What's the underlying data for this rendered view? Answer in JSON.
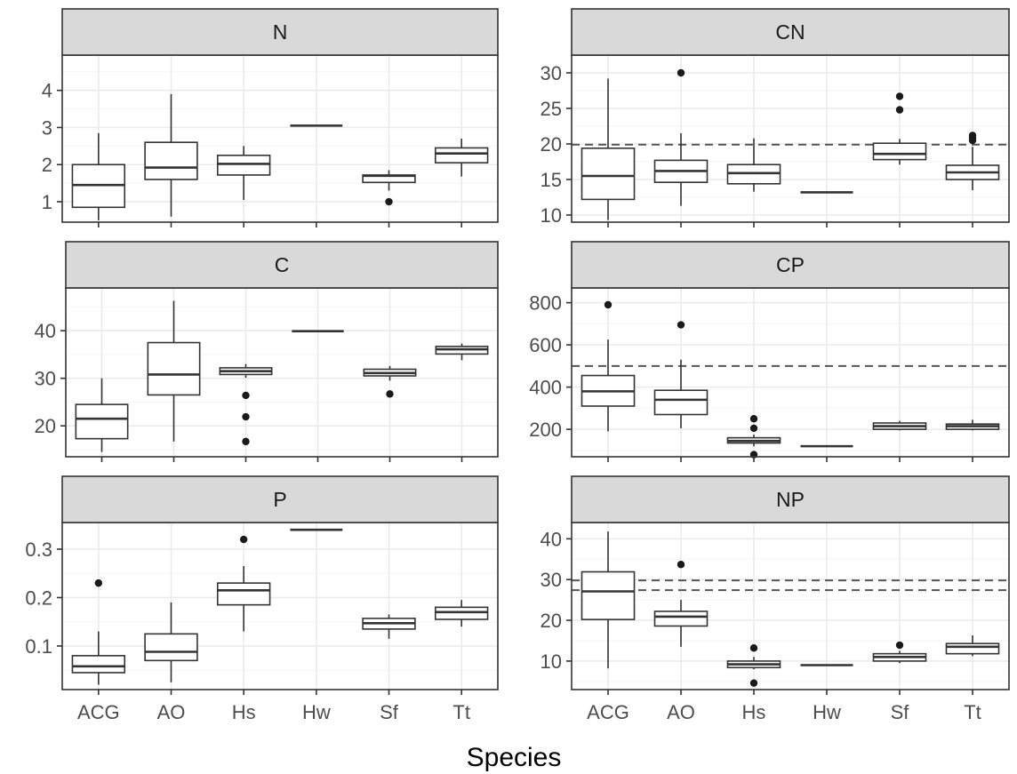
{
  "figure": {
    "xlabel": "Species",
    "categories": [
      "ACG",
      "AO",
      "Hs",
      "Hw",
      "Sf",
      "Tt"
    ],
    "colors": {
      "strip_fill": "#d9d9d9",
      "panel_border": "#333333",
      "grid_major": "#ebebeb",
      "grid_minor": "#f5f5f5",
      "box_stroke": "#333333",
      "reference_line": "#555555",
      "outlier": "#1a1a1a"
    }
  },
  "chart_data": [
    {
      "type": "boxplot",
      "title": "N",
      "ylim": [
        0.45,
        4.95
      ],
      "yticks": [
        1,
        2,
        3,
        4
      ],
      "yticklabels": [
        "1",
        "2",
        "3",
        "4"
      ],
      "reference_lines": [],
      "boxes": [
        {
          "category": "ACG",
          "whisker_low": 0.5,
          "q1": 0.85,
          "median": 1.45,
          "q3": 2.0,
          "whisker_high": 2.85,
          "outliers": []
        },
        {
          "category": "AO",
          "whisker_low": 0.6,
          "q1": 1.6,
          "median": 1.92,
          "q3": 2.6,
          "whisker_high": 3.9,
          "outliers": []
        },
        {
          "category": "Hs",
          "whisker_low": 1.05,
          "q1": 1.72,
          "median": 2.02,
          "q3": 2.25,
          "whisker_high": 2.5,
          "outliers": []
        },
        {
          "category": "Hw",
          "whisker_low": 3.05,
          "q1": 3.05,
          "median": 3.05,
          "q3": 3.05,
          "whisker_high": 3.05,
          "outliers": []
        },
        {
          "category": "Sf",
          "whisker_low": 1.3,
          "q1": 1.52,
          "median": 1.7,
          "q3": 1.72,
          "whisker_high": 1.85,
          "outliers": [
            1.0
          ]
        },
        {
          "category": "Tt",
          "whisker_low": 1.68,
          "q1": 2.05,
          "median": 2.3,
          "q3": 2.45,
          "whisker_high": 2.7,
          "outliers": []
        }
      ]
    },
    {
      "type": "boxplot",
      "title": "CN",
      "ylim": [
        9.0,
        32.5
      ],
      "yticks": [
        10,
        15,
        20,
        25,
        30
      ],
      "yticklabels": [
        "10",
        "15",
        "20",
        "25",
        "30"
      ],
      "reference_lines": [
        19.9
      ],
      "boxes": [
        {
          "category": "ACG",
          "whisker_low": 9.3,
          "q1": 12.2,
          "median": 15.5,
          "q3": 19.4,
          "whisker_high": 29.2,
          "outliers": []
        },
        {
          "category": "AO",
          "whisker_low": 11.3,
          "q1": 14.6,
          "median": 16.2,
          "q3": 17.7,
          "whisker_high": 21.5,
          "outliers": [
            30.0
          ]
        },
        {
          "category": "Hs",
          "whisker_low": 13.3,
          "q1": 14.4,
          "median": 15.9,
          "q3": 17.1,
          "whisker_high": 20.8,
          "outliers": []
        },
        {
          "category": "Hw",
          "whisker_low": 13.2,
          "q1": 13.2,
          "median": 13.2,
          "q3": 13.2,
          "whisker_high": 13.2,
          "outliers": []
        },
        {
          "category": "Sf",
          "whisker_low": 17.1,
          "q1": 17.8,
          "median": 18.6,
          "q3": 20.1,
          "whisker_high": 20.7,
          "outliers": [
            24.8,
            26.7
          ]
        },
        {
          "category": "Tt",
          "whisker_low": 13.5,
          "q1": 15.0,
          "median": 16.0,
          "q3": 17.0,
          "whisker_high": 19.6,
          "outliers": [
            20.5,
            20.9,
            21.2
          ]
        }
      ]
    },
    {
      "type": "boxplot",
      "title": "C",
      "ylim": [
        13.5,
        49.0
      ],
      "yticks": [
        20,
        30,
        40
      ],
      "yticklabels": [
        "20",
        "30",
        "40"
      ],
      "reference_lines": [],
      "boxes": [
        {
          "category": "ACG",
          "whisker_low": 14.5,
          "q1": 17.3,
          "median": 21.5,
          "q3": 24.5,
          "whisker_high": 30.0,
          "outliers": []
        },
        {
          "category": "AO",
          "whisker_low": 16.7,
          "q1": 26.5,
          "median": 30.8,
          "q3": 37.5,
          "whisker_high": 46.3,
          "outliers": []
        },
        {
          "category": "Hs",
          "whisker_low": 30.1,
          "q1": 30.8,
          "median": 31.5,
          "q3": 32.2,
          "whisker_high": 33.0,
          "outliers": [
            26.4,
            21.9,
            16.7
          ]
        },
        {
          "category": "Hw",
          "whisker_low": 39.9,
          "q1": 39.9,
          "median": 39.9,
          "q3": 39.9,
          "whisker_high": 39.9,
          "outliers": []
        },
        {
          "category": "Sf",
          "whisker_low": 29.5,
          "q1": 30.5,
          "median": 31.1,
          "q3": 31.9,
          "whisker_high": 32.6,
          "outliers": [
            26.7
          ]
        },
        {
          "category": "Tt",
          "whisker_low": 33.8,
          "q1": 35.1,
          "median": 36.1,
          "q3": 36.7,
          "whisker_high": 37.3,
          "outliers": []
        }
      ]
    },
    {
      "type": "boxplot",
      "title": "CP",
      "ylim": [
        70,
        870
      ],
      "yticks": [
        200,
        400,
        600,
        800
      ],
      "yticklabels": [
        "200",
        "400",
        "600",
        "800"
      ],
      "reference_lines": [
        500
      ],
      "boxes": [
        {
          "category": "ACG",
          "whisker_low": 190,
          "q1": 310,
          "median": 380,
          "q3": 455,
          "whisker_high": 625,
          "outliers": [
            790
          ]
        },
        {
          "category": "AO",
          "whisker_low": 205,
          "q1": 270,
          "median": 340,
          "q3": 385,
          "whisker_high": 530,
          "outliers": [
            695
          ]
        },
        {
          "category": "Hs",
          "whisker_low": 120,
          "q1": 135,
          "median": 145,
          "q3": 160,
          "whisker_high": 175,
          "outliers": [
            205,
            250,
            80
          ]
        },
        {
          "category": "Hw",
          "whisker_low": 120,
          "q1": 120,
          "median": 120,
          "q3": 120,
          "whisker_high": 120,
          "outliers": []
        },
        {
          "category": "Sf",
          "whisker_low": 195,
          "q1": 200,
          "median": 215,
          "q3": 230,
          "whisker_high": 240,
          "outliers": []
        },
        {
          "category": "Tt",
          "whisker_low": 195,
          "q1": 200,
          "median": 215,
          "q3": 225,
          "whisker_high": 245,
          "outliers": []
        }
      ]
    },
    {
      "type": "boxplot",
      "title": "P",
      "ylim": [
        0.01,
        0.355
      ],
      "yticks": [
        0.1,
        0.2,
        0.3
      ],
      "yticklabels": [
        "0.1",
        "0.2",
        "0.3"
      ],
      "reference_lines": [],
      "boxes": [
        {
          "category": "ACG",
          "whisker_low": 0.02,
          "q1": 0.045,
          "median": 0.058,
          "q3": 0.08,
          "whisker_high": 0.13,
          "outliers": [
            0.23
          ]
        },
        {
          "category": "AO",
          "whisker_low": 0.025,
          "q1": 0.07,
          "median": 0.088,
          "q3": 0.125,
          "whisker_high": 0.19,
          "outliers": []
        },
        {
          "category": "Hs",
          "whisker_low": 0.13,
          "q1": 0.185,
          "median": 0.215,
          "q3": 0.23,
          "whisker_high": 0.265,
          "outliers": [
            0.32
          ]
        },
        {
          "category": "Hw",
          "whisker_low": 0.34,
          "q1": 0.34,
          "median": 0.34,
          "q3": 0.34,
          "whisker_high": 0.34,
          "outliers": []
        },
        {
          "category": "Sf",
          "whisker_low": 0.115,
          "q1": 0.135,
          "median": 0.147,
          "q3": 0.157,
          "whisker_high": 0.165,
          "outliers": []
        },
        {
          "category": "Tt",
          "whisker_low": 0.14,
          "q1": 0.155,
          "median": 0.17,
          "q3": 0.18,
          "whisker_high": 0.195,
          "outliers": []
        }
      ]
    },
    {
      "type": "boxplot",
      "title": "NP",
      "ylim": [
        3.0,
        44.0
      ],
      "yticks": [
        10,
        20,
        30,
        40
      ],
      "yticklabels": [
        "10",
        "20",
        "30",
        "40"
      ],
      "reference_lines": [
        27.4,
        29.8
      ],
      "boxes": [
        {
          "category": "ACG",
          "whisker_low": 8.2,
          "q1": 20.2,
          "median": 27.1,
          "q3": 31.9,
          "whisker_high": 41.8,
          "outliers": []
        },
        {
          "category": "AO",
          "whisker_low": 13.5,
          "q1": 18.6,
          "median": 20.9,
          "q3": 22.2,
          "whisker_high": 25.0,
          "outliers": [
            33.7
          ]
        },
        {
          "category": "Hs",
          "whisker_low": 8.0,
          "q1": 8.4,
          "median": 9.2,
          "q3": 10.0,
          "whisker_high": 11.0,
          "outliers": [
            13.2,
            4.6
          ]
        },
        {
          "category": "Hw",
          "whisker_low": 9.0,
          "q1": 9.0,
          "median": 9.0,
          "q3": 9.0,
          "whisker_high": 9.0,
          "outliers": []
        },
        {
          "category": "Sf",
          "whisker_low": 9.5,
          "q1": 10.0,
          "median": 11.0,
          "q3": 11.8,
          "whisker_high": 12.5,
          "outliers": [
            13.9
          ]
        },
        {
          "category": "Tt",
          "whisker_low": 11.2,
          "q1": 11.8,
          "median": 13.5,
          "q3": 14.3,
          "whisker_high": 16.3,
          "outliers": []
        }
      ]
    }
  ]
}
